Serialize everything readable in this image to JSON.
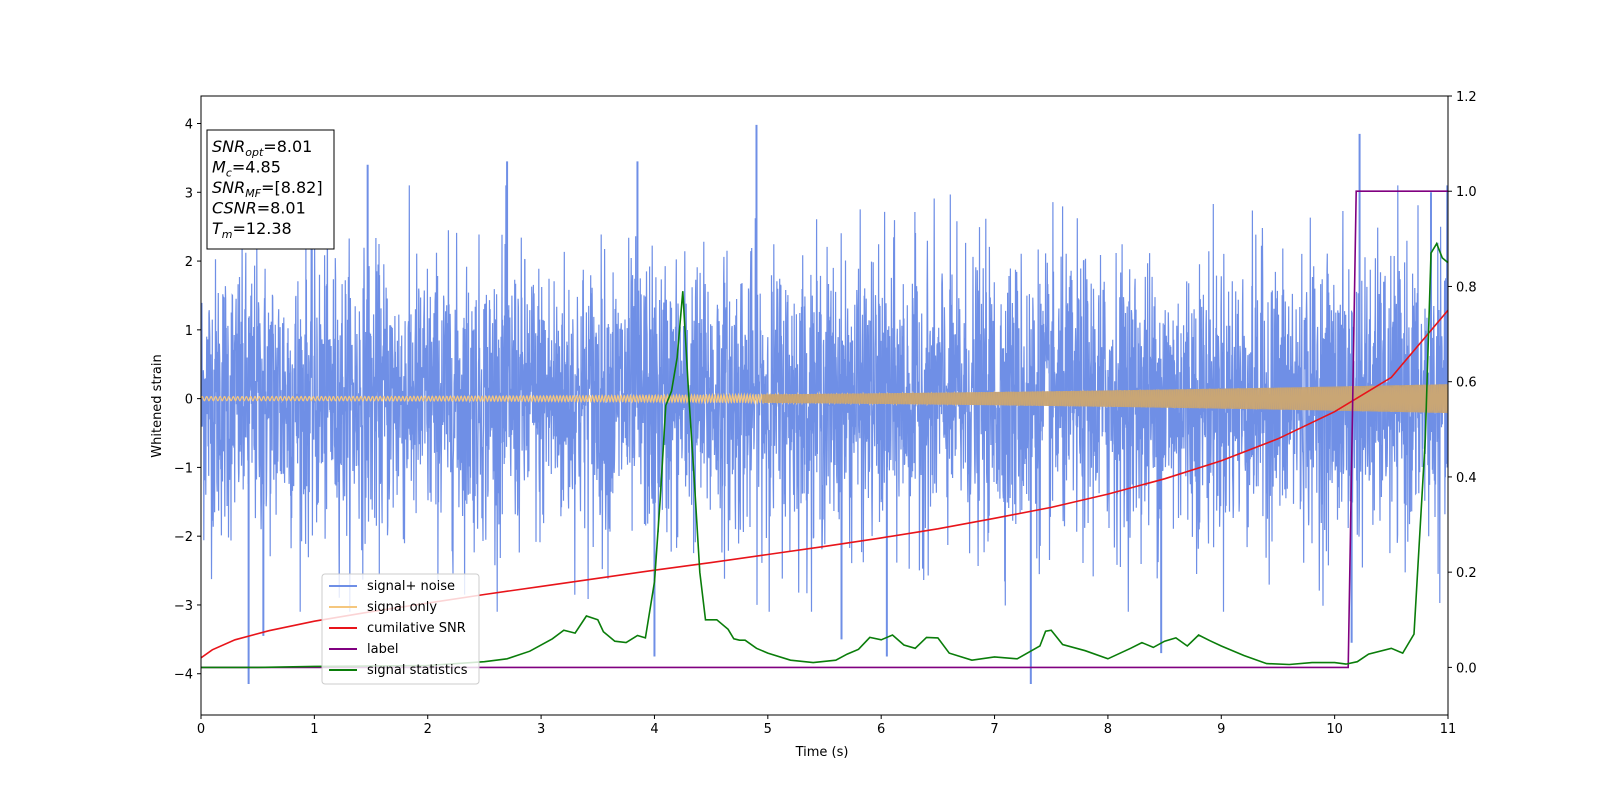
{
  "chart_data": {
    "type": "line",
    "title": "",
    "xlabel": "Time (s)",
    "ylabel": "Whitened strain",
    "xlim": [
      0,
      11
    ],
    "ylim": [
      -4.6,
      4.4
    ],
    "y2lim": [
      -0.1,
      1.2
    ],
    "xticks": [
      "0",
      "1",
      "2",
      "3",
      "4",
      "5",
      "6",
      "7",
      "8",
      "9",
      "10",
      "11"
    ],
    "yticks": [
      "−4",
      "−3",
      "−2",
      "−1",
      "0",
      "1",
      "2",
      "3",
      "4"
    ],
    "y2ticks": [
      "0.0",
      "0.2",
      "0.4",
      "0.6",
      "0.8",
      "1.0",
      "1.2"
    ],
    "grid": false,
    "legend_position": "lower-left",
    "annotation_box": {
      "lines": [
        {
          "main": "SNR",
          "sub": "opt",
          "rest": "=8.01"
        },
        {
          "main": "M",
          "sub": "c",
          "rest": "=4.85"
        },
        {
          "main": "SNR",
          "sub": "MF",
          "rest": "=[8.82]"
        },
        {
          "main": "CSNR",
          "sub": "",
          "rest": "=8.01"
        },
        {
          "main": "T",
          "sub": "m",
          "rest": "=12.38"
        }
      ]
    },
    "series": [
      {
        "name": "signal+ noise",
        "axis": "left",
        "color": "#6f8fe6",
        "style": "dense noise, envelope approx ±2.5 with spikes",
        "noise_sigma": 1.0,
        "spikes": [
          [
            0.42,
            -4.15
          ],
          [
            0.55,
            -3.45
          ],
          [
            1.47,
            3.4
          ],
          [
            2.7,
            3.45
          ],
          [
            3.85,
            3.45
          ],
          [
            4.0,
            -3.75
          ],
          [
            4.9,
            3.98
          ],
          [
            5.65,
            -3.5
          ],
          [
            6.05,
            -3.75
          ],
          [
            7.32,
            -4.15
          ],
          [
            8.47,
            -3.7
          ],
          [
            10.15,
            -3.55
          ],
          [
            10.22,
            3.85
          ],
          [
            10.85,
            3.0
          ]
        ]
      },
      {
        "name": "signal only",
        "axis": "left",
        "color": "#f5c77e",
        "style": "chirp, amplitude grows from ~0.03 to ~0.21",
        "amplitude_start": 0.03,
        "amplitude_end": 0.21
      },
      {
        "name": "cumilative SNR",
        "axis": "right",
        "color": "#e8141a",
        "x": [
          0,
          0.1,
          0.3,
          0.6,
          1,
          1.5,
          2,
          2.5,
          3,
          3.5,
          4,
          4.5,
          5,
          5.5,
          6,
          6.5,
          7,
          7.5,
          8,
          8.5,
          9,
          9.5,
          10,
          10.5,
          11
        ],
        "y": [
          0.02,
          0.037,
          0.058,
          0.077,
          0.097,
          0.117,
          0.135,
          0.153,
          0.17,
          0.187,
          0.204,
          0.22,
          0.237,
          0.254,
          0.272,
          0.291,
          0.313,
          0.336,
          0.364,
          0.396,
          0.434,
          0.48,
          0.537,
          0.609,
          0.75
        ]
      },
      {
        "name": "label",
        "axis": "right",
        "color": "#800080",
        "x": [
          0,
          10.12,
          10.19,
          11
        ],
        "y": [
          0,
          0,
          1,
          1
        ]
      },
      {
        "name": "signal statistics",
        "axis": "right",
        "color": "#0a7d0a",
        "x": [
          0,
          0.5,
          1,
          1.5,
          2,
          2.5,
          2.7,
          2.9,
          3.1,
          3.2,
          3.3,
          3.4,
          3.5,
          3.55,
          3.65,
          3.75,
          3.85,
          3.92,
          4.0,
          4.05,
          4.1,
          4.15,
          4.2,
          4.25,
          4.3,
          4.35,
          4.4,
          4.45,
          4.55,
          4.65,
          4.7,
          4.75,
          4.8,
          4.9,
          5.0,
          5.2,
          5.4,
          5.6,
          5.7,
          5.8,
          5.9,
          6.0,
          6.1,
          6.2,
          6.3,
          6.4,
          6.5,
          6.6,
          6.8,
          7.0,
          7.2,
          7.4,
          7.45,
          7.5,
          7.6,
          7.8,
          8.0,
          8.2,
          8.3,
          8.4,
          8.5,
          8.6,
          8.7,
          8.8,
          8.9,
          9.0,
          9.2,
          9.4,
          9.6,
          9.8,
          10.0,
          10.1,
          10.2,
          10.3,
          10.5,
          10.6,
          10.7,
          10.8,
          10.85,
          10.9,
          10.95,
          11.0
        ],
        "y": [
          0,
          0,
          0.002,
          0.003,
          0.004,
          0.012,
          0.018,
          0.034,
          0.06,
          0.078,
          0.072,
          0.108,
          0.1,
          0.075,
          0.055,
          0.052,
          0.067,
          0.062,
          0.18,
          0.35,
          0.55,
          0.58,
          0.65,
          0.79,
          0.58,
          0.4,
          0.2,
          0.1,
          0.1,
          0.08,
          0.06,
          0.057,
          0.057,
          0.04,
          0.03,
          0.015,
          0.01,
          0.015,
          0.028,
          0.038,
          0.063,
          0.058,
          0.068,
          0.047,
          0.04,
          0.063,
          0.062,
          0.03,
          0.015,
          0.022,
          0.018,
          0.045,
          0.076,
          0.078,
          0.048,
          0.035,
          0.018,
          0.04,
          0.052,
          0.042,
          0.055,
          0.062,
          0.045,
          0.068,
          0.056,
          0.045,
          0.025,
          0.008,
          0.006,
          0.01,
          0.01,
          0.007,
          0.012,
          0.028,
          0.04,
          0.03,
          0.07,
          0.48,
          0.87,
          0.89,
          0.86,
          0.85
        ]
      }
    ]
  }
}
